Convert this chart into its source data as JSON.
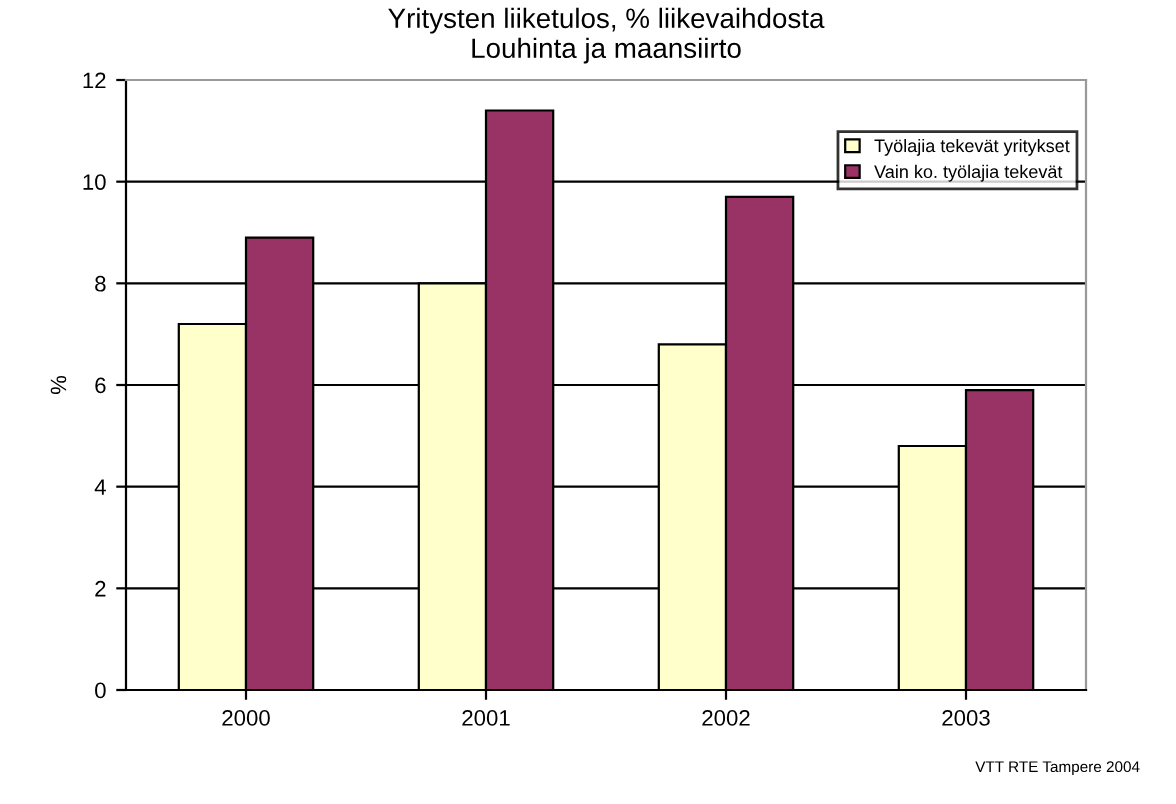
{
  "chart_data": {
    "type": "bar",
    "title": "Yritysten liiketulos, % liikevaihdosta\nLouhinta ja maansiirto",
    "ylabel": "%",
    "categories": [
      "2000",
      "2001",
      "2002",
      "2003"
    ],
    "series": [
      {
        "name": "Työlajia tekevät yritykset",
        "color": "#ffffcc",
        "values": [
          7.2,
          8.0,
          6.8,
          4.8
        ]
      },
      {
        "name": "Vain ko. työlajia tekevät",
        "color": "#993366",
        "values": [
          8.9,
          11.4,
          9.7,
          5.9
        ]
      }
    ],
    "ylim": [
      0,
      12
    ],
    "yticks": [
      0,
      2,
      4,
      6,
      8,
      10,
      12
    ],
    "grid": "y",
    "legend": "top right",
    "annotations": [
      "VTT RTE Tampere 2004"
    ]
  }
}
